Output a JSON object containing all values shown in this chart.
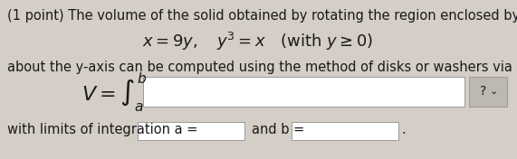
{
  "bg_color": "#d4cec6",
  "text_color": "#1a1a1a",
  "line1": "(1 point) The volume of the solid obtained by rotating the region enclosed by",
  "line3": "about the y-axis can be computed using the method of disks or washers via an integral",
  "limits_label": "with limits of integration a =",
  "and_b_label": "and b =",
  "input_box_color": "#ffffff",
  "question_box_color": "#bdb8b0",
  "question_mark": "?",
  "font_size_body": 10.5,
  "font_size_math": 13
}
